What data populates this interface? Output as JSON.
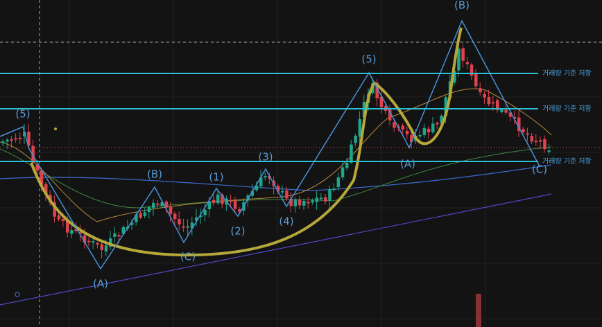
{
  "wave_labels": [
    "(5)",
    "(A)",
    "(B)",
    "(C)",
    "(1)",
    "(2)",
    "(3)",
    "(4)",
    "(5)",
    "(A)",
    "(B)",
    "(C)"
  ],
  "resistance_lines": [
    {
      "label": "거래량 기준 저항"
    },
    {
      "label": "거래량 기준 저항"
    },
    {
      "label": "거래량 기준 저항"
    }
  ]
}
